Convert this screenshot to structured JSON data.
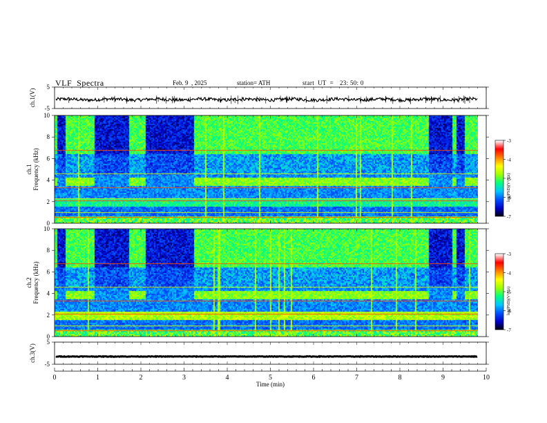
{
  "header": {
    "title": "VLF  Spectra",
    "date": "Feb. 9  , 2025",
    "station": "station= ATH",
    "start_label": "start  UT  =",
    "start_value": "23: 50: 0"
  },
  "chart_data": {
    "type": "heatmap",
    "xlabel": "Time  (min)",
    "xlim": [
      0,
      10
    ],
    "x_ticks": [
      "0",
      "1",
      "2",
      "3",
      "4",
      "5",
      "6",
      "7",
      "8",
      "9",
      "10"
    ],
    "panels": [
      {
        "name": "ch.1 waveform",
        "type": "line",
        "ylabel": "ch.1(V)",
        "ylim": [
          -5,
          5
        ],
        "y_ticks": [
          "-5",
          "5"
        ],
        "line_color": "#000000",
        "series_level_v": -0.8,
        "x_end_min": 9.8
      },
      {
        "name": "ch.1 spectrogram",
        "type": "heatmap",
        "ylabel": "ch.1\nFrequency  (kHz)",
        "ylim": [
          0,
          10
        ],
        "y_ticks": [
          "0",
          "2",
          "4",
          "6",
          "8",
          "10"
        ],
        "colorbar": {
          "label": "log(PSD)(V²/Hz)",
          "range": [
            -7,
            -3
          ],
          "ticks": [
            "-7",
            "-6",
            "-5",
            "-4",
            "-3"
          ]
        },
        "quiet_intervals_min": [
          [
            0.05,
            0.25
          ],
          [
            0.9,
            1.7
          ],
          [
            2.1,
            3.2
          ],
          [
            8.65,
            9.2
          ],
          [
            9.3,
            9.5
          ]
        ],
        "tone_band_khz": [
          3.5,
          4.3
        ],
        "x_end_min": 9.8
      },
      {
        "name": "ch.2 spectrogram",
        "type": "heatmap",
        "ylabel": "ch.2\nFrequency  (kHz)",
        "ylim": [
          0,
          10
        ],
        "y_ticks": [
          "0",
          "2",
          "4",
          "6",
          "8",
          "10"
        ],
        "colorbar": {
          "label": "log(PSD)(V²/Hz)",
          "range": [
            -7,
            -3
          ],
          "ticks": [
            "-7",
            "-6",
            "-5",
            "-4",
            "-3"
          ]
        },
        "quiet_intervals_min": [
          [
            0.05,
            0.25
          ],
          [
            0.9,
            1.7
          ],
          [
            2.1,
            3.2
          ],
          [
            8.65,
            9.2
          ],
          [
            9.3,
            9.5
          ]
        ],
        "tone_band_khz": [
          3.5,
          4.3
        ],
        "x_end_min": 9.8
      },
      {
        "name": "ch.3 waveform",
        "type": "line",
        "ylabel": "ch.3(V)",
        "ylim": [
          -5,
          5
        ],
        "y_ticks": [
          "-5",
          "5"
        ],
        "line_color": "#000000",
        "series_level_v": -1.5,
        "x_end_min": 9.8
      }
    ],
    "grid": false,
    "colormap": [
      "#000000",
      "#0000c8",
      "#0050ff",
      "#00c8ff",
      "#00ff80",
      "#a0ff00",
      "#ffff00",
      "#ff8000",
      "#ff0000",
      "#ffffff"
    ]
  }
}
